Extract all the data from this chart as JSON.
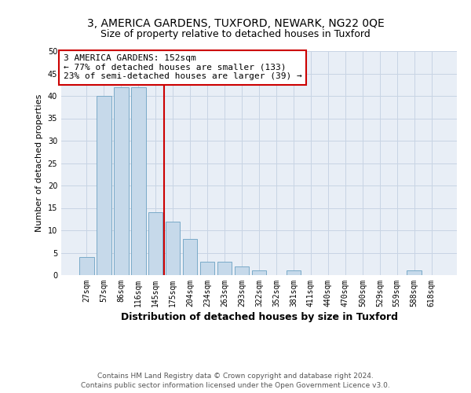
{
  "title_line1": "3, AMERICA GARDENS, TUXFORD, NEWARK, NG22 0QE",
  "title_line2": "Size of property relative to detached houses in Tuxford",
  "xlabel": "Distribution of detached houses by size in Tuxford",
  "ylabel": "Number of detached properties",
  "categories": [
    "27sqm",
    "57sqm",
    "86sqm",
    "116sqm",
    "145sqm",
    "175sqm",
    "204sqm",
    "234sqm",
    "263sqm",
    "293sqm",
    "322sqm",
    "352sqm",
    "381sqm",
    "411sqm",
    "440sqm",
    "470sqm",
    "500sqm",
    "529sqm",
    "559sqm",
    "588sqm",
    "618sqm"
  ],
  "values": [
    4,
    40,
    42,
    42,
    14,
    12,
    8,
    3,
    3,
    2,
    1,
    0,
    1,
    0,
    0,
    0,
    0,
    0,
    0,
    1,
    0
  ],
  "bar_color": "#c6d9ea",
  "bar_edge_color": "#7aaac8",
  "vline_index": 4,
  "vline_color": "#cc0000",
  "annotation_text": "3 AMERICA GARDENS: 152sqm\n← 77% of detached houses are smaller (133)\n23% of semi-detached houses are larger (39) →",
  "annotation_box_color": "#ffffff",
  "annotation_box_edge": "#cc0000",
  "annotation_fontsize": 8,
  "ylim": [
    0,
    50
  ],
  "yticks": [
    0,
    5,
    10,
    15,
    20,
    25,
    30,
    35,
    40,
    45,
    50
  ],
  "grid_color": "#c8d4e4",
  "bg_color": "#e8eef6",
  "footer_text": "Contains HM Land Registry data © Crown copyright and database right 2024.\nContains public sector information licensed under the Open Government Licence v3.0.",
  "title_fontsize": 10,
  "subtitle_fontsize": 9,
  "xlabel_fontsize": 9,
  "ylabel_fontsize": 8,
  "tick_fontsize": 7,
  "footer_fontsize": 6.5
}
